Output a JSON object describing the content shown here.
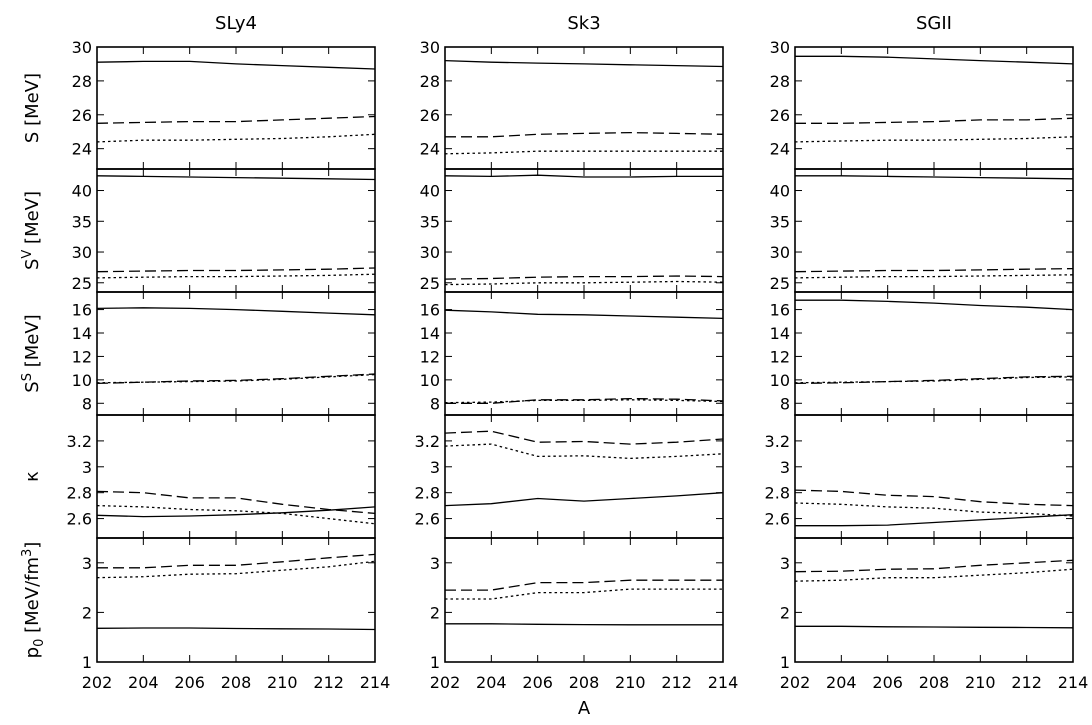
{
  "chart_data": {
    "type": "line",
    "xlabel": "A",
    "x": [
      202,
      204,
      206,
      208,
      210,
      212,
      214
    ],
    "xlim": [
      202,
      214
    ],
    "xticks": [
      "202",
      "204",
      "206",
      "208",
      "210",
      "212",
      "214"
    ],
    "columns": [
      "SLy4",
      "Sk3",
      "SGII"
    ],
    "line_styles": [
      "solid",
      "dashed",
      "dotted"
    ],
    "rows": [
      {
        "ylabel": "S [MeV]",
        "ylim": [
          22.8,
          30
        ],
        "yticks": [
          "24",
          "26",
          "28",
          "30"
        ],
        "yticks_values": [
          24,
          26,
          28,
          30
        ],
        "panels": [
          [
            [
              29.1,
              29.15,
              29.15,
              29.0,
              28.9,
              28.8,
              28.7
            ],
            [
              25.5,
              25.55,
              25.6,
              25.6,
              25.7,
              25.8,
              25.9
            ],
            [
              24.4,
              24.5,
              24.5,
              24.55,
              24.6,
              24.7,
              24.85
            ]
          ],
          [
            [
              29.2,
              29.1,
              29.05,
              29.0,
              28.95,
              28.9,
              28.85
            ],
            [
              24.7,
              24.7,
              24.85,
              24.9,
              24.95,
              24.9,
              24.85
            ],
            [
              23.7,
              23.75,
              23.85,
              23.85,
              23.85,
              23.85,
              23.85
            ]
          ],
          [
            [
              29.45,
              29.45,
              29.4,
              29.3,
              29.2,
              29.1,
              29.0
            ],
            [
              25.5,
              25.5,
              25.55,
              25.6,
              25.7,
              25.7,
              25.8
            ],
            [
              24.4,
              24.45,
              24.5,
              24.5,
              24.55,
              24.6,
              24.7
            ]
          ]
        ]
      },
      {
        "ylabel": "S^V [MeV]",
        "ylim": [
          23.5,
          43.5
        ],
        "yticks": [
          "25",
          "30",
          "35",
          "40"
        ],
        "yticks_values": [
          25,
          30,
          35,
          40
        ],
        "panels": [
          [
            [
              42.4,
              42.3,
              42.2,
              42.1,
              42.0,
              41.9,
              41.8
            ],
            [
              26.8,
              26.9,
              27.0,
              27.0,
              27.1,
              27.2,
              27.4
            ],
            [
              25.8,
              25.9,
              26.0,
              26.0,
              26.1,
              26.2,
              26.4
            ]
          ],
          [
            [
              42.4,
              42.3,
              42.5,
              42.2,
              42.2,
              42.3,
              42.3
            ],
            [
              25.6,
              25.7,
              25.9,
              26.0,
              26.0,
              26.1,
              26.0
            ],
            [
              24.7,
              24.8,
              25.0,
              25.0,
              25.1,
              25.2,
              25.1
            ]
          ],
          [
            [
              42.4,
              42.4,
              42.3,
              42.2,
              42.1,
              42.0,
              41.9
            ],
            [
              26.8,
              26.9,
              27.0,
              27.0,
              27.1,
              27.2,
              27.3
            ],
            [
              25.8,
              25.9,
              26.0,
              26.0,
              26.1,
              26.2,
              26.3
            ]
          ]
        ]
      },
      {
        "ylabel": "S^S [MeV]",
        "ylim": [
          7,
          17.5
        ],
        "yticks": [
          "8",
          "10",
          "12",
          "14",
          "16"
        ],
        "yticks_values": [
          8,
          10,
          12,
          14,
          16
        ],
        "panels": [
          [
            [
              16.1,
              16.15,
              16.1,
              16.0,
              15.85,
              15.7,
              15.55
            ],
            [
              9.7,
              9.8,
              9.9,
              9.95,
              10.1,
              10.3,
              10.5
            ],
            [
              9.75,
              9.8,
              9.85,
              9.9,
              10.05,
              10.25,
              10.45
            ]
          ],
          [
            [
              15.95,
              15.8,
              15.6,
              15.55,
              15.45,
              15.35,
              15.25
            ],
            [
              8.0,
              8.0,
              8.3,
              8.3,
              8.4,
              8.35,
              8.2
            ],
            [
              8.05,
              8.1,
              8.25,
              8.25,
              8.3,
              8.25,
              8.15
            ]
          ],
          [
            [
              16.8,
              16.8,
              16.7,
              16.55,
              16.35,
              16.2,
              16.0
            ],
            [
              9.7,
              9.75,
              9.85,
              9.95,
              10.1,
              10.25,
              10.3
            ],
            [
              9.75,
              9.8,
              9.85,
              9.9,
              10.05,
              10.2,
              10.25
            ]
          ]
        ]
      },
      {
        "ylabel": "κ",
        "ylim": [
          2.45,
          3.4
        ],
        "yticks": [
          "2.6",
          "2.8",
          "3",
          "3.2"
        ],
        "yticks_values": [
          2.6,
          2.8,
          3.0,
          3.2
        ],
        "panels": [
          [
            [
              2.625,
              2.615,
              2.62,
              2.63,
              2.645,
              2.665,
              2.69
            ],
            [
              2.81,
              2.8,
              2.76,
              2.76,
              2.71,
              2.67,
              2.64
            ],
            [
              2.7,
              2.69,
              2.67,
              2.66,
              2.64,
              2.6,
              2.56
            ]
          ],
          [
            [
              2.7,
              2.715,
              2.755,
              2.735,
              2.755,
              2.775,
              2.8
            ],
            [
              3.26,
              3.275,
              3.19,
              3.195,
              3.175,
              3.19,
              3.215
            ],
            [
              3.16,
              3.175,
              3.08,
              3.085,
              3.065,
              3.08,
              3.1
            ]
          ],
          [
            [
              2.545,
              2.545,
              2.55,
              2.57,
              2.59,
              2.61,
              2.63
            ],
            [
              2.82,
              2.81,
              2.78,
              2.77,
              2.73,
              2.71,
              2.7
            ],
            [
              2.72,
              2.71,
              2.69,
              2.68,
              2.65,
              2.64,
              2.62
            ]
          ]
        ]
      },
      {
        "ylabel": "p0 [MeV/fm3]",
        "ylim": [
          1,
          3.5
        ],
        "yticks": [
          "1",
          "2",
          "3"
        ],
        "yticks_values": [
          1,
          2,
          3
        ],
        "panels": [
          [
            [
              1.68,
              1.685,
              1.685,
              1.675,
              1.67,
              1.665,
              1.655
            ],
            [
              2.9,
              2.9,
              2.95,
              2.95,
              3.02,
              3.1,
              3.17
            ],
            [
              2.7,
              2.72,
              2.77,
              2.78,
              2.85,
              2.92,
              3.03
            ]
          ],
          [
            [
              1.77,
              1.77,
              1.76,
              1.755,
              1.75,
              1.75,
              1.75
            ],
            [
              2.45,
              2.45,
              2.6,
              2.6,
              2.65,
              2.65,
              2.65
            ],
            [
              2.27,
              2.27,
              2.4,
              2.4,
              2.47,
              2.47,
              2.47
            ]
          ],
          [
            [
              1.72,
              1.72,
              1.71,
              1.705,
              1.7,
              1.695,
              1.69
            ],
            [
              2.82,
              2.83,
              2.87,
              2.88,
              2.95,
              3.0,
              3.05
            ],
            [
              2.63,
              2.65,
              2.7,
              2.7,
              2.75,
              2.8,
              2.87
            ]
          ]
        ]
      }
    ]
  }
}
